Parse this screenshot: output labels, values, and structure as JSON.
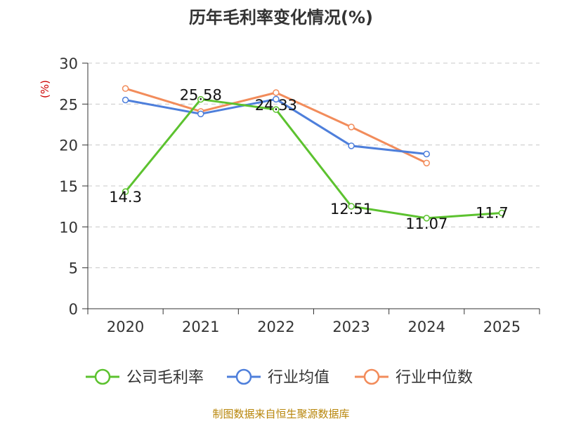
{
  "chart_data": {
    "type": "line",
    "title": "历年毛利率变化情况(%)",
    "ylabel": "(%)",
    "categories": [
      "2020",
      "2021",
      "2022",
      "2023",
      "2024",
      "2025"
    ],
    "ylim": [
      0,
      30
    ],
    "yticks": [
      "0",
      "5",
      "10",
      "15",
      "20",
      "25",
      "30"
    ],
    "grid": true,
    "legend_position": "bottom",
    "series": [
      {
        "name": "公司毛利率",
        "color": "#5cc22f",
        "values": [
          14.3,
          25.58,
          24.33,
          12.51,
          11.07,
          11.7
        ],
        "labels": [
          "14.3",
          "25.58",
          "24.33",
          "12.51",
          "11.07",
          "11.7"
        ]
      },
      {
        "name": "行业均值",
        "color": "#4e7fdb",
        "values": [
          25.5,
          23.8,
          25.6,
          19.9,
          18.9,
          null
        ]
      },
      {
        "name": "行业中位数",
        "color": "#f28c5b",
        "values": [
          26.9,
          24.1,
          26.4,
          22.2,
          17.8,
          null
        ]
      }
    ]
  },
  "source": "制图数据来自恒生聚源数据库"
}
